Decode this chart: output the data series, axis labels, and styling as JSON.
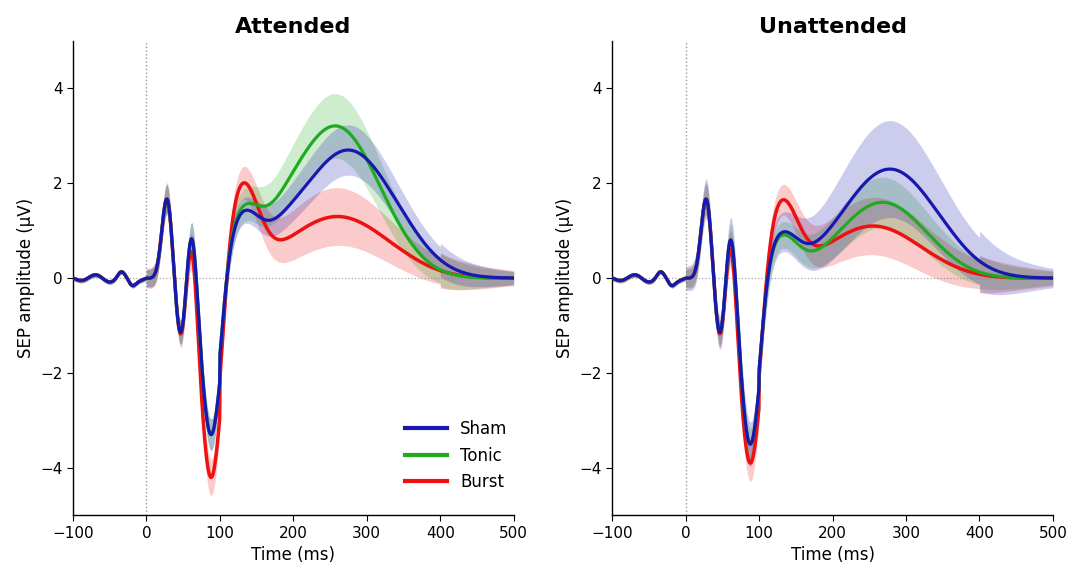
{
  "title_left": "Attended",
  "title_right": "Unattended",
  "xlabel": "Time (ms)",
  "ylabel": "SEP amplitude (μV)",
  "xlim": [
    -100,
    500
  ],
  "ylim": [
    -5.0,
    5.0
  ],
  "yticks": [
    -4,
    -2,
    0,
    2,
    4
  ],
  "xticks": [
    -100,
    0,
    100,
    200,
    300,
    400,
    500
  ],
  "vline_x": 0,
  "hline_y": 0,
  "colors": {
    "sham": "#1818b0",
    "tonic": "#20aa20",
    "burst": "#ee1111"
  },
  "alpha_fill": 0.22,
  "linewidth": 2.3,
  "title_fontsize": 16,
  "title_fontweight": "bold",
  "label_fontsize": 12,
  "tick_fontsize": 11
}
